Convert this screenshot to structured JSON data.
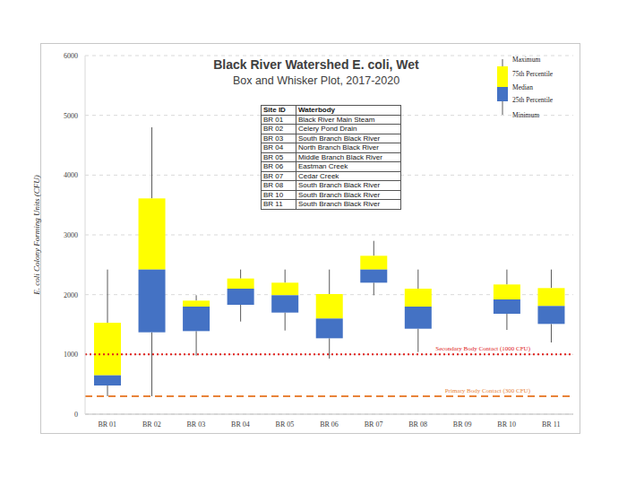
{
  "chart_data": {
    "type": "box",
    "title": "Black River Watershed E. coli, Wet",
    "subtitle": "Box and Whisker Plot, 2017-2020",
    "y_label": "E. coli Colony Forming Units (CFU)",
    "categories": [
      "BR 01",
      "BR 02",
      "BR 03",
      "BR 04",
      "BR 05",
      "BR 06",
      "BR 07",
      "BR 08",
      "BR 09",
      "BR 10",
      "BR 11"
    ],
    "series": [
      {
        "name": "Maximum",
        "color": "#595959",
        "values": [
          2420,
          4800,
          1990,
          2420,
          2420,
          2420,
          2900,
          2420,
          null,
          2420,
          2420
        ]
      },
      {
        "name": "75th Percentile",
        "color": "#ffff00",
        "values": [
          1530,
          3610,
          1900,
          2270,
          2200,
          2010,
          2650,
          2100,
          null,
          2170,
          2110
        ]
      },
      {
        "name": "Median",
        "values": [
          650,
          2420,
          1800,
          2100,
          1990,
          1600,
          2420,
          1800,
          null,
          1920,
          1810
        ]
      },
      {
        "name": "25th Percentile",
        "color": "#4472c4",
        "values": [
          480,
          1370,
          1390,
          1830,
          1700,
          1270,
          2200,
          1430,
          null,
          1680,
          1510
        ]
      },
      {
        "name": "Minimum",
        "color": "#595959",
        "values": [
          300,
          300,
          980,
          1550,
          1400,
          930,
          1990,
          1040,
          null,
          1410,
          1200
        ]
      }
    ],
    "ylim": [
      0,
      6000
    ],
    "yticks": [
      0,
      1000,
      2000,
      3000,
      4000,
      5000,
      6000
    ],
    "grid": true,
    "legend": "top-right",
    "reference_lines": [
      {
        "label": "Secondary Body Contact (1000 CFU)",
        "value": 1000,
        "color": "#e0201b",
        "line_style": "dotted"
      },
      {
        "label": "Primary Body Contact (300 CFU)",
        "value": 300,
        "color": "#e8833a",
        "line_style": "dashed"
      }
    ],
    "site_table": {
      "header": [
        "Site ID",
        "Waterbody"
      ],
      "rows": [
        [
          "BR 01",
          "Black River Main Steam"
        ],
        [
          "BR 02",
          "Celery Pond Drain"
        ],
        [
          "BR 03",
          "South Branch Black River"
        ],
        [
          "BR 04",
          "North Branch Black River"
        ],
        [
          "BR 05",
          "Middle Branch Black River"
        ],
        [
          "BR 06",
          "Eastman Creek"
        ],
        [
          "BR 07",
          "Cedar Creek"
        ],
        [
          "BR 08",
          "South Branch Black River"
        ],
        [
          "BR 10",
          "South Branch Black River"
        ],
        [
          "BR 11",
          "South Branch Black River"
        ]
      ]
    }
  }
}
